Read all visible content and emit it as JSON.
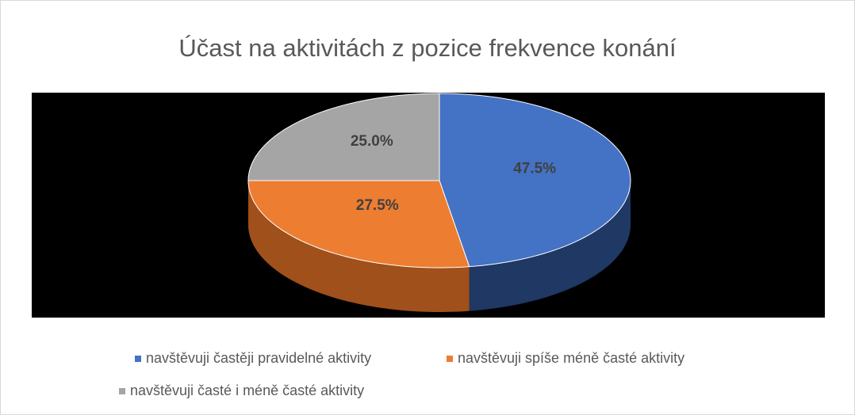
{
  "chart_data": {
    "type": "pie",
    "title": "Účast na aktivitách z pozice frekvence konání",
    "categories": [
      "navštěvuji častěji pravidelné aktivity",
      "navštěvuji spíše méně časté aktivity",
      "navštěvuji časté i méně časté aktivity"
    ],
    "values": [
      47.5,
      27.5,
      25
    ],
    "value_labels": [
      "47.5%",
      "27.5%",
      "25.0%"
    ],
    "colors": [
      "#4472c4",
      "#ed7d31",
      "#a5a5a5"
    ],
    "side_colors": [
      "#1f3864",
      "#a0501a",
      "#7a7a7a"
    ],
    "legend": "bottom"
  }
}
